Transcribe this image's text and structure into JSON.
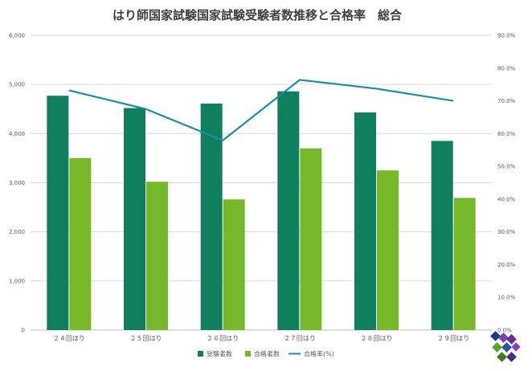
{
  "chart_data": {
    "type": "bar",
    "title": "はり師国家試験国家試験受験者数推移と合格率　総合",
    "categories": [
      "２４回はり",
      "２５回はり",
      "２６回はり",
      "２７回はり",
      "２８回はり",
      "２９回はり"
    ],
    "series": [
      {
        "name": "受験者数",
        "type": "bar",
        "axis": "left",
        "color": "#0f7f5e",
        "values": [
          4770,
          4520,
          4610,
          4860,
          4430,
          3850
        ]
      },
      {
        "name": "合格者数",
        "type": "bar",
        "axis": "left",
        "color": "#76b82a",
        "values": [
          3500,
          3020,
          2660,
          3700,
          3250,
          2690
        ]
      },
      {
        "name": "合格率(%)",
        "type": "line",
        "axis": "right",
        "color": "#1c8ca8",
        "values": [
          73.2,
          67.5,
          57.9,
          76.4,
          73.7,
          70.0
        ]
      }
    ],
    "y_left": {
      "ylim": [
        0,
        6000
      ],
      "ticks": [
        "0",
        "1,000",
        "2,000",
        "3,000",
        "4,000",
        "5,000",
        "6,000"
      ]
    },
    "y_right": {
      "ylim": [
        0,
        90
      ],
      "ticks": [
        "0.0%",
        "10.0%",
        "20.0%",
        "30.0%",
        "40.0%",
        "50.0%",
        "60.0%",
        "70.0%",
        "80.0%",
        "90.0%"
      ]
    },
    "grid": true,
    "legend_position": "bottom"
  }
}
